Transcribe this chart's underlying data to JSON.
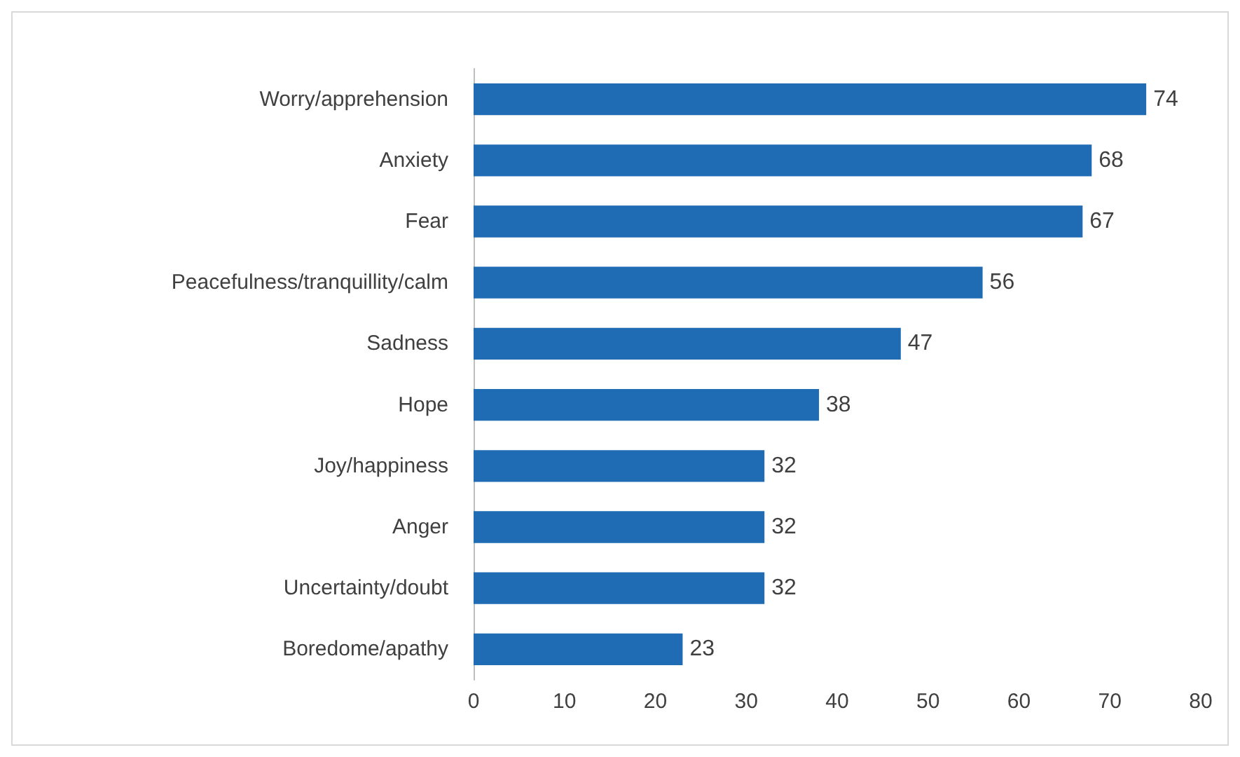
{
  "chart_data": {
    "type": "bar",
    "orientation": "horizontal",
    "categories": [
      "Worry/apprehension",
      "Anxiety",
      "Fear",
      "Peacefulness/tranquillity/calm",
      "Sadness",
      "Hope",
      "Joy/happiness",
      "Anger",
      "Uncertainty/doubt",
      "Boredome/apathy"
    ],
    "values": [
      74,
      68,
      67,
      56,
      47,
      38,
      32,
      32,
      32,
      23
    ],
    "color": "#1f6cb5",
    "xlim": [
      0,
      80
    ],
    "xticks": [
      0,
      10,
      20,
      30,
      40,
      50,
      60,
      70,
      80
    ],
    "grid": false,
    "data_labels": true
  }
}
